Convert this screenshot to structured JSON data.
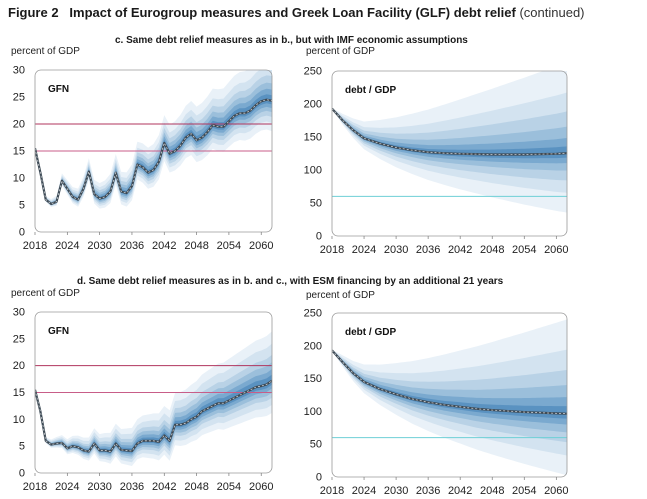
{
  "figure": {
    "number": "Figure 2",
    "title": "Impact of Eurogroup measures and Greek Loan Facility (GLF) debt relief",
    "suffix": "(continued)"
  },
  "panels": {
    "c": "c. Same debt relief measures as in b., but with IMF economic assumptions",
    "d": "d. Same debt relief measures as in b. and c., with ESM financing by an additional 21 years"
  },
  "ylabel": "percent of GDP",
  "colors": {
    "fan": [
      "#e9f1f8",
      "#d3e3f0",
      "#b9d2e6",
      "#9bbfdb",
      "#7aa9cf",
      "#5a92c1"
    ],
    "median": "#3d4a55",
    "ref_gfn_high": "#b0355e",
    "ref_gfn_low": "#c85d88",
    "ref_debt": "#6ecfd6"
  },
  "chart_data": [
    {
      "id": "c-gfn",
      "type": "area",
      "label": "GFN",
      "x_ticks": [
        "2018",
        "2024",
        "2030",
        "2036",
        "2042",
        "2048",
        "2054",
        "2060"
      ],
      "ylim": [
        0,
        30
      ],
      "y_ticks": [
        0,
        5,
        10,
        15,
        20,
        25,
        30
      ],
      "reference_lines": [
        20,
        15
      ],
      "median": [
        [
          2018,
          15.5
        ],
        [
          2019,
          11
        ],
        [
          2020,
          6
        ],
        [
          2021,
          5.2
        ],
        [
          2022,
          5.6
        ],
        [
          2023,
          9.5
        ],
        [
          2024,
          8
        ],
        [
          2025,
          6.5
        ],
        [
          2026,
          6
        ],
        [
          2027,
          8
        ],
        [
          2028,
          11.2
        ],
        [
          2029,
          7
        ],
        [
          2030,
          6.2
        ],
        [
          2031,
          6.5
        ],
        [
          2032,
          7.5
        ],
        [
          2033,
          11
        ],
        [
          2034,
          7.5
        ],
        [
          2035,
          7.2
        ],
        [
          2036,
          8.5
        ],
        [
          2037,
          12.5
        ],
        [
          2038,
          12
        ],
        [
          2039,
          11
        ],
        [
          2040,
          11.5
        ],
        [
          2041,
          13
        ],
        [
          2042,
          16.5
        ],
        [
          2043,
          14.5
        ],
        [
          2044,
          15
        ],
        [
          2045,
          16
        ],
        [
          2046,
          17.5
        ],
        [
          2047,
          18.2
        ],
        [
          2048,
          17
        ],
        [
          2049,
          17.5
        ],
        [
          2050,
          18.5
        ],
        [
          2051,
          19.8
        ],
        [
          2052,
          19.5
        ],
        [
          2053,
          19.5
        ],
        [
          2054,
          20.5
        ],
        [
          2055,
          21.5
        ],
        [
          2056,
          22
        ],
        [
          2057,
          22
        ],
        [
          2058,
          22.5
        ],
        [
          2059,
          23.5
        ],
        [
          2060,
          24.2
        ],
        [
          2061,
          24.5
        ],
        [
          2062,
          24.3
        ]
      ],
      "band_spread": [
        7.5,
        5.5,
        4,
        2.8,
        1.8,
        0.9
      ]
    },
    {
      "id": "c-debt",
      "type": "area",
      "label": "debt / GDP",
      "x_ticks": [
        "2018",
        "2024",
        "2030",
        "2036",
        "2042",
        "2048",
        "2054",
        "2060"
      ],
      "ylim": [
        0,
        250
      ],
      "y_ticks": [
        0,
        50,
        100,
        150,
        200,
        250
      ],
      "reference_lines": [
        60
      ],
      "median": [
        [
          2018,
          193
        ],
        [
          2020,
          175
        ],
        [
          2022,
          160
        ],
        [
          2024,
          148
        ],
        [
          2027,
          140
        ],
        [
          2030,
          134
        ],
        [
          2033,
          130
        ],
        [
          2036,
          127
        ],
        [
          2039,
          125.5
        ],
        [
          2042,
          124.5
        ],
        [
          2045,
          124
        ],
        [
          2048,
          123.5
        ],
        [
          2051,
          123.5
        ],
        [
          2054,
          123.5
        ],
        [
          2057,
          124
        ],
        [
          2060,
          124.5
        ],
        [
          2062,
          125.5
        ]
      ],
      "band_spread": [
        120,
        80,
        55,
        35,
        20,
        9
      ]
    },
    {
      "id": "d-gfn",
      "type": "area",
      "label": "GFN",
      "x_ticks": [
        "2018",
        "2024",
        "2030",
        "2036",
        "2042",
        "2048",
        "2054",
        "2060"
      ],
      "ylim": [
        0,
        30
      ],
      "y_ticks": [
        0,
        5,
        10,
        15,
        20,
        25,
        30
      ],
      "reference_lines": [
        20,
        15
      ],
      "median": [
        [
          2018,
          15.5
        ],
        [
          2019,
          11.5
        ],
        [
          2020,
          6
        ],
        [
          2021,
          5.3
        ],
        [
          2022,
          5.5
        ],
        [
          2023,
          5.6
        ],
        [
          2024,
          4.6
        ],
        [
          2025,
          5
        ],
        [
          2026,
          4.8
        ],
        [
          2027,
          4.2
        ],
        [
          2028,
          4
        ],
        [
          2029,
          5.5
        ],
        [
          2030,
          4.2
        ],
        [
          2031,
          4.2
        ],
        [
          2032,
          4
        ],
        [
          2033,
          5.5
        ],
        [
          2034,
          4.3
        ],
        [
          2035,
          4.2
        ],
        [
          2036,
          4.1
        ],
        [
          2037,
          5.5
        ],
        [
          2038,
          6
        ],
        [
          2039,
          6
        ],
        [
          2040,
          6
        ],
        [
          2041,
          5.8
        ],
        [
          2042,
          7
        ],
        [
          2043,
          6
        ],
        [
          2044,
          9
        ],
        [
          2045,
          9
        ],
        [
          2046,
          9.3
        ],
        [
          2047,
          10
        ],
        [
          2048,
          10.5
        ],
        [
          2049,
          11.5
        ],
        [
          2050,
          12
        ],
        [
          2051,
          12.5
        ],
        [
          2052,
          13
        ],
        [
          2053,
          13
        ],
        [
          2054,
          13.5
        ],
        [
          2055,
          14
        ],
        [
          2056,
          14.5
        ],
        [
          2057,
          15
        ],
        [
          2058,
          15.5
        ],
        [
          2059,
          16
        ],
        [
          2060,
          16.2
        ],
        [
          2061,
          16.5
        ],
        [
          2062,
          17.2
        ]
      ],
      "band_spread": [
        8,
        6,
        4.2,
        3,
        1.9,
        1
      ]
    },
    {
      "id": "d-debt",
      "type": "area",
      "label": "debt / GDP",
      "x_ticks": [
        "2018",
        "2024",
        "2030",
        "2036",
        "2042",
        "2048",
        "2054",
        "2060"
      ],
      "ylim": [
        0,
        250
      ],
      "y_ticks": [
        0,
        50,
        100,
        150,
        200,
        250
      ],
      "reference_lines": [
        60
      ],
      "median": [
        [
          2018,
          193
        ],
        [
          2020,
          175
        ],
        [
          2022,
          158
        ],
        [
          2024,
          145
        ],
        [
          2027,
          134
        ],
        [
          2030,
          126
        ],
        [
          2033,
          119
        ],
        [
          2036,
          114
        ],
        [
          2039,
          110
        ],
        [
          2042,
          107
        ],
        [
          2045,
          104
        ],
        [
          2048,
          102
        ],
        [
          2051,
          100.5
        ],
        [
          2054,
          99
        ],
        [
          2057,
          98
        ],
        [
          2060,
          97
        ],
        [
          2062,
          96.5
        ]
      ],
      "band_spread": [
        125,
        85,
        58,
        38,
        22,
        10
      ]
    }
  ]
}
